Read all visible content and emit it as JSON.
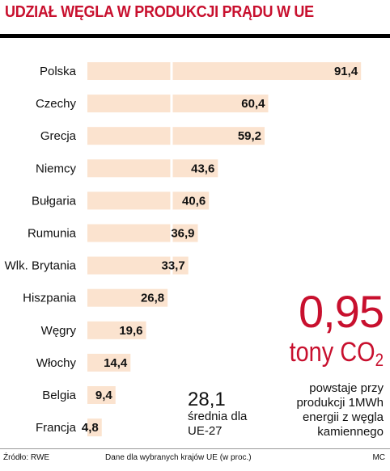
{
  "title": "UDZIAŁ WĘGLA W PRODUKCJI PRĄDU W UE",
  "chart_data": {
    "type": "bar",
    "orientation": "horizontal",
    "title": "UDZIAŁ WĘGLA W PRODUKCJI PRĄDU W UE",
    "categories": [
      "Polska",
      "Czechy",
      "Grecja",
      "Niemcy",
      "Bułgaria",
      "Rumunia",
      "Wlk. Brytania",
      "Hiszpania",
      "Węgry",
      "Włochy",
      "Belgia",
      "Francja"
    ],
    "values": [
      91.4,
      60.4,
      59.2,
      43.6,
      40.6,
      36.9,
      33.7,
      26.8,
      19.6,
      14.4,
      9.4,
      4.8
    ],
    "value_labels": [
      "91,4",
      "60,4",
      "59,2",
      "43,6",
      "40,6",
      "36,9",
      "33,7",
      "26,8",
      "19,6",
      "14,4",
      "9,4",
      "4,8"
    ],
    "xlim": [
      0,
      100
    ],
    "reference_line": {
      "value": 28.1,
      "label_number": "28,1",
      "label_text_1": "średnia dla",
      "label_text_2": "UE-27"
    },
    "grid": false,
    "bar_color": "#fbe3cf",
    "ref_line_color": "#ffffff"
  },
  "callout": {
    "big_number": "0,95",
    "unit_main": "tony CO",
    "unit_sub": "2",
    "desc_line1": "powstaje przy",
    "desc_line2": "produkcji 1MWh",
    "desc_line3": "energii z węgla",
    "desc_line4": "kamiennego",
    "color": "#c8102e"
  },
  "footer": {
    "source": "Źródło: RWE",
    "note": "Dane dla wybranych krajów UE (w proc.)",
    "credit": "MC"
  }
}
